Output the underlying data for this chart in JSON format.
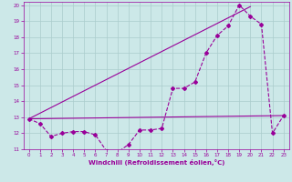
{
  "xlabel": "Windchill (Refroidissement éolien,°C)",
  "xlim": [
    -0.5,
    23.5
  ],
  "ylim": [
    11,
    20.2
  ],
  "yticks": [
    11,
    12,
    13,
    14,
    15,
    16,
    17,
    18,
    19,
    20
  ],
  "xticks": [
    0,
    1,
    2,
    3,
    4,
    5,
    6,
    7,
    8,
    9,
    10,
    11,
    12,
    13,
    14,
    15,
    16,
    17,
    18,
    19,
    20,
    21,
    22,
    23
  ],
  "bg_color": "#cce8e8",
  "grid_color": "#aacccc",
  "line_color": "#990099",
  "line1_x": [
    0,
    1,
    2,
    3,
    4,
    5,
    6,
    7,
    8,
    9,
    10,
    11,
    12,
    13,
    14,
    15,
    16,
    17,
    18,
    19,
    20,
    21,
    22,
    23
  ],
  "line1_y": [
    12.9,
    12.6,
    11.8,
    12.0,
    12.1,
    12.1,
    11.9,
    10.9,
    10.8,
    11.3,
    12.2,
    12.2,
    12.3,
    14.8,
    14.8,
    15.2,
    17.0,
    18.1,
    18.7,
    20.0,
    19.3,
    18.8,
    12.0,
    13.1
  ],
  "line2_x": [
    0,
    23
  ],
  "line2_y": [
    12.9,
    13.1
  ],
  "line3_x": [
    0,
    20
  ],
  "line3_y": [
    12.9,
    19.9
  ],
  "marker": "D",
  "marker_size": 2.0,
  "linewidth": 0.8
}
